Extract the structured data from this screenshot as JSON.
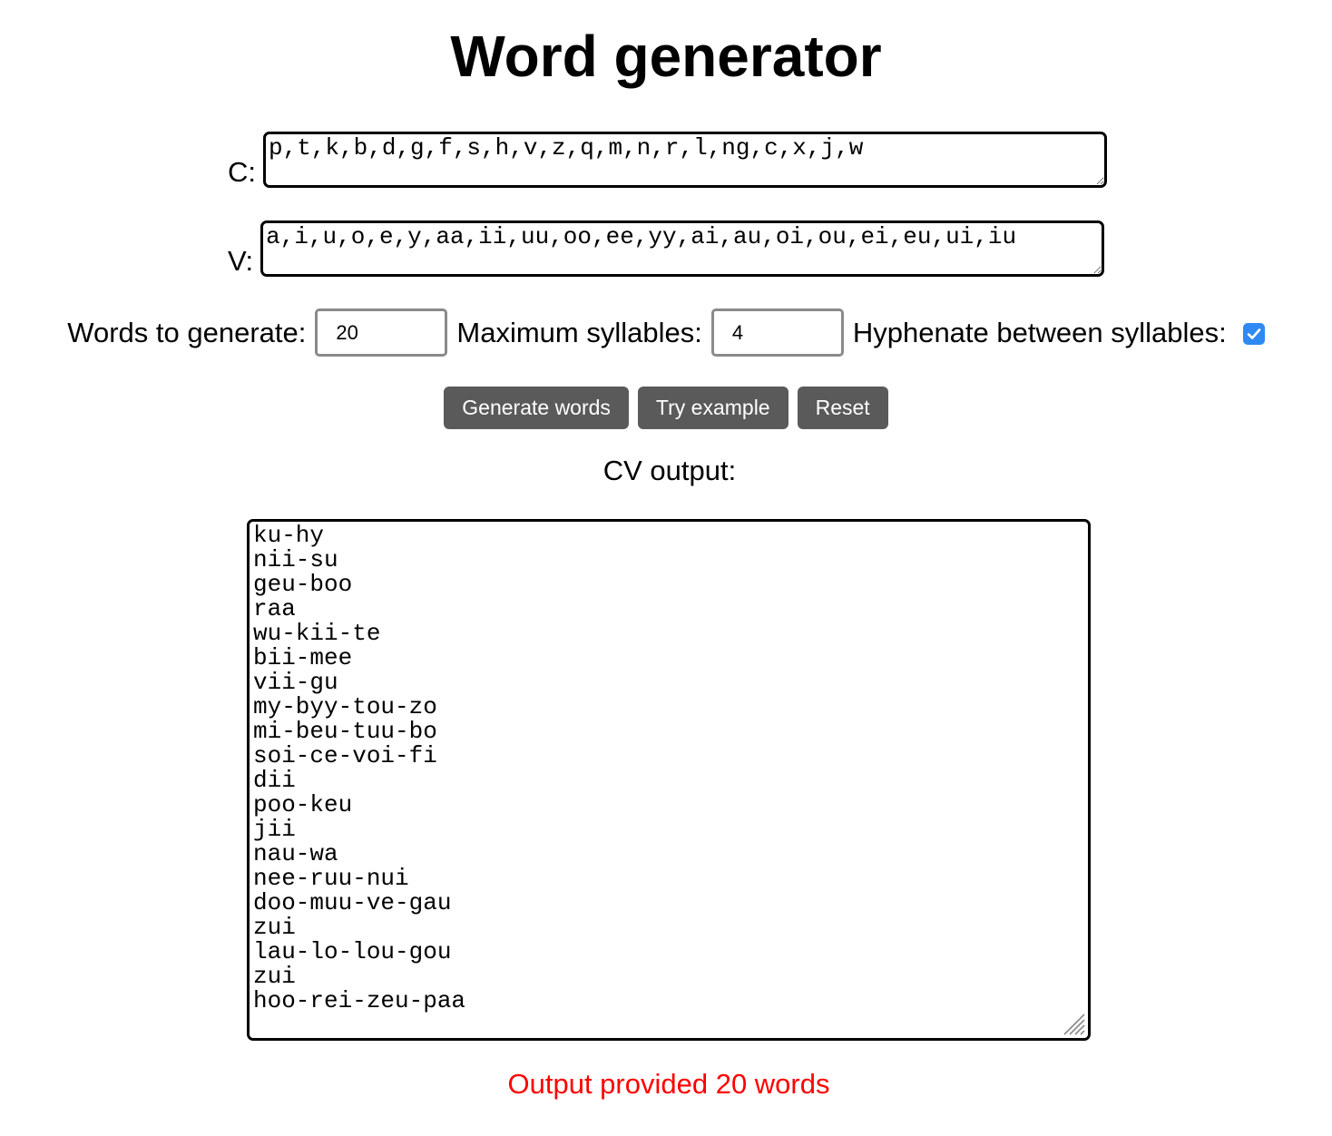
{
  "title": "Word generator",
  "consonants": {
    "label": "C:",
    "value": "p,t,k,b,d,g,f,s,h,v,z,q,m,n,r,l,ng,c,x,j,w"
  },
  "vowels": {
    "label": "V:",
    "value": "a,i,u,o,e,y,aa,ii,uu,oo,ee,yy,ai,au,oi,ou,ei,eu,ui,iu"
  },
  "options": {
    "words_label": "Words to generate:",
    "words_value": "20",
    "syllables_label": "Maximum syllables:",
    "syllables_value": "4",
    "hyphenate_label": "Hyphenate between syllables:",
    "hyphenate_checked": true
  },
  "buttons": {
    "generate": "Generate words",
    "example": "Try example",
    "reset": "Reset"
  },
  "output": {
    "label": "CV output:",
    "words": [
      "ku-hy",
      "nii-su",
      "geu-boo",
      "raa",
      "wu-kii-te",
      "bii-mee",
      "vii-gu",
      "my-byy-tou-zo",
      "mi-beu-tuu-bo",
      "soi-ce-voi-fi",
      "dii",
      "poo-keu",
      "jii",
      "nau-wa",
      "nee-ruu-nui",
      "doo-muu-ve-gau",
      "zui",
      "lau-lo-lou-gou",
      "zui",
      "hoo-rei-zeu-paa"
    ]
  },
  "status": "Output provided 20 words",
  "colors": {
    "button_bg": "#5a5a5a",
    "checkbox": "#2e8af2",
    "status": "#ff0000"
  }
}
